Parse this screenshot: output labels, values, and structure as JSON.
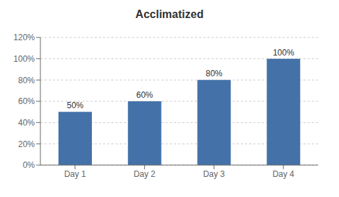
{
  "chart_data": {
    "type": "bar",
    "title": "Acclimatized",
    "categories": [
      "Day 1",
      "Day 2",
      "Day 3",
      "Day 4"
    ],
    "values": [
      0.5,
      0.6,
      0.8,
      1.0
    ],
    "value_labels": [
      "50%",
      "60%",
      "80%",
      "100%"
    ],
    "data_labels": true,
    "color": "#4472a8",
    "ylim": [
      0,
      1.2
    ],
    "yticks": [
      {
        "value": 0,
        "label": "0%"
      },
      {
        "value": 0.2,
        "label": "20%"
      },
      {
        "value": 0.4,
        "label": "40%"
      },
      {
        "value": 0.6,
        "label": "60%"
      },
      {
        "value": 0.8,
        "label": "80%"
      },
      {
        "value": 1.0,
        "label": "100%"
      },
      {
        "value": 1.2,
        "label": "120%"
      }
    ],
    "grid": true
  }
}
